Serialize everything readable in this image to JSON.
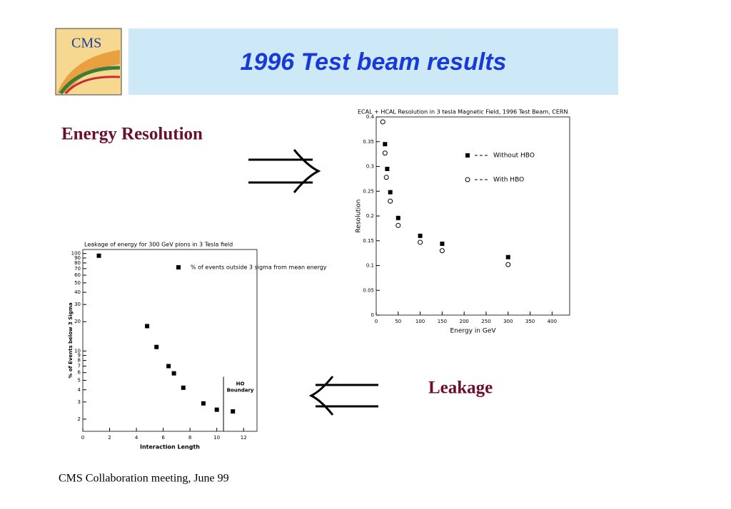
{
  "slide": {
    "title": "1996 Test beam results",
    "logo": "CMS",
    "energy_label": "Energy Resolution",
    "leakage_label": "Leakage",
    "footer": "CMS  Collaboration meeting, June 99"
  },
  "chart_data": [
    {
      "type": "scatter",
      "title": "ECAL + HCAL Resolution in 3 tesla Magnetic Field, 1996 Test Beam, CERN",
      "x_label": "Energy in GeV",
      "y_label": "Resolution",
      "xlim": [
        0,
        440
      ],
      "xticks": [
        0,
        50,
        100,
        150,
        200,
        250,
        300,
        350,
        400
      ],
      "ylim": [
        0,
        0.4
      ],
      "yticks": [
        0,
        0.05,
        0.1,
        0.15,
        0.2,
        0.25,
        0.3,
        0.35,
        0.4
      ],
      "log_y": false,
      "series": [
        {
          "name": "Without HBO",
          "color": "#000000",
          "marker": "square",
          "x": [
            20,
            25,
            32,
            50,
            100,
            150,
            300
          ],
          "values": [
            0.345,
            0.295,
            0.248,
            0.196,
            0.16,
            0.144,
            0.117
          ]
        },
        {
          "name": "With HBO",
          "color": "#000000",
          "marker": "circle",
          "x": [
            15,
            20,
            23,
            32,
            50,
            100,
            150,
            300
          ],
          "values": [
            0.39,
            0.327,
            0.278,
            0.23,
            0.181,
            0.147,
            0.13,
            0.102
          ]
        }
      ]
    },
    {
      "type": "scatter",
      "title": "Leakage of energy for 300 GeV pions in 3 Tesla field",
      "x_label": "Interaction Length",
      "y_label": "% of Events below 3 Sigma",
      "xlim": [
        0,
        13
      ],
      "xticks": [
        0,
        2,
        4,
        6,
        8,
        10,
        12
      ],
      "ylim": [
        1.5,
        110
      ],
      "yticks": [
        2,
        3,
        4,
        5,
        6,
        7,
        8,
        9,
        10,
        20,
        30,
        40,
        50,
        60,
        70,
        80,
        90,
        100
      ],
      "log_y": true,
      "annotations": [
        {
          "text": "HO Boundary",
          "x": 10.5
        }
      ],
      "series": [
        {
          "name": "% of events outside 3 sigma from mean energy",
          "color": "#000000",
          "marker": "square",
          "x": [
            1.2,
            4.8,
            5.5,
            6.4,
            6.8,
            7.5,
            9,
            10,
            11.2
          ],
          "values": [
            95,
            18,
            11,
            7,
            5.9,
            4.2,
            2.9,
            2.5,
            2.4
          ]
        }
      ]
    }
  ]
}
